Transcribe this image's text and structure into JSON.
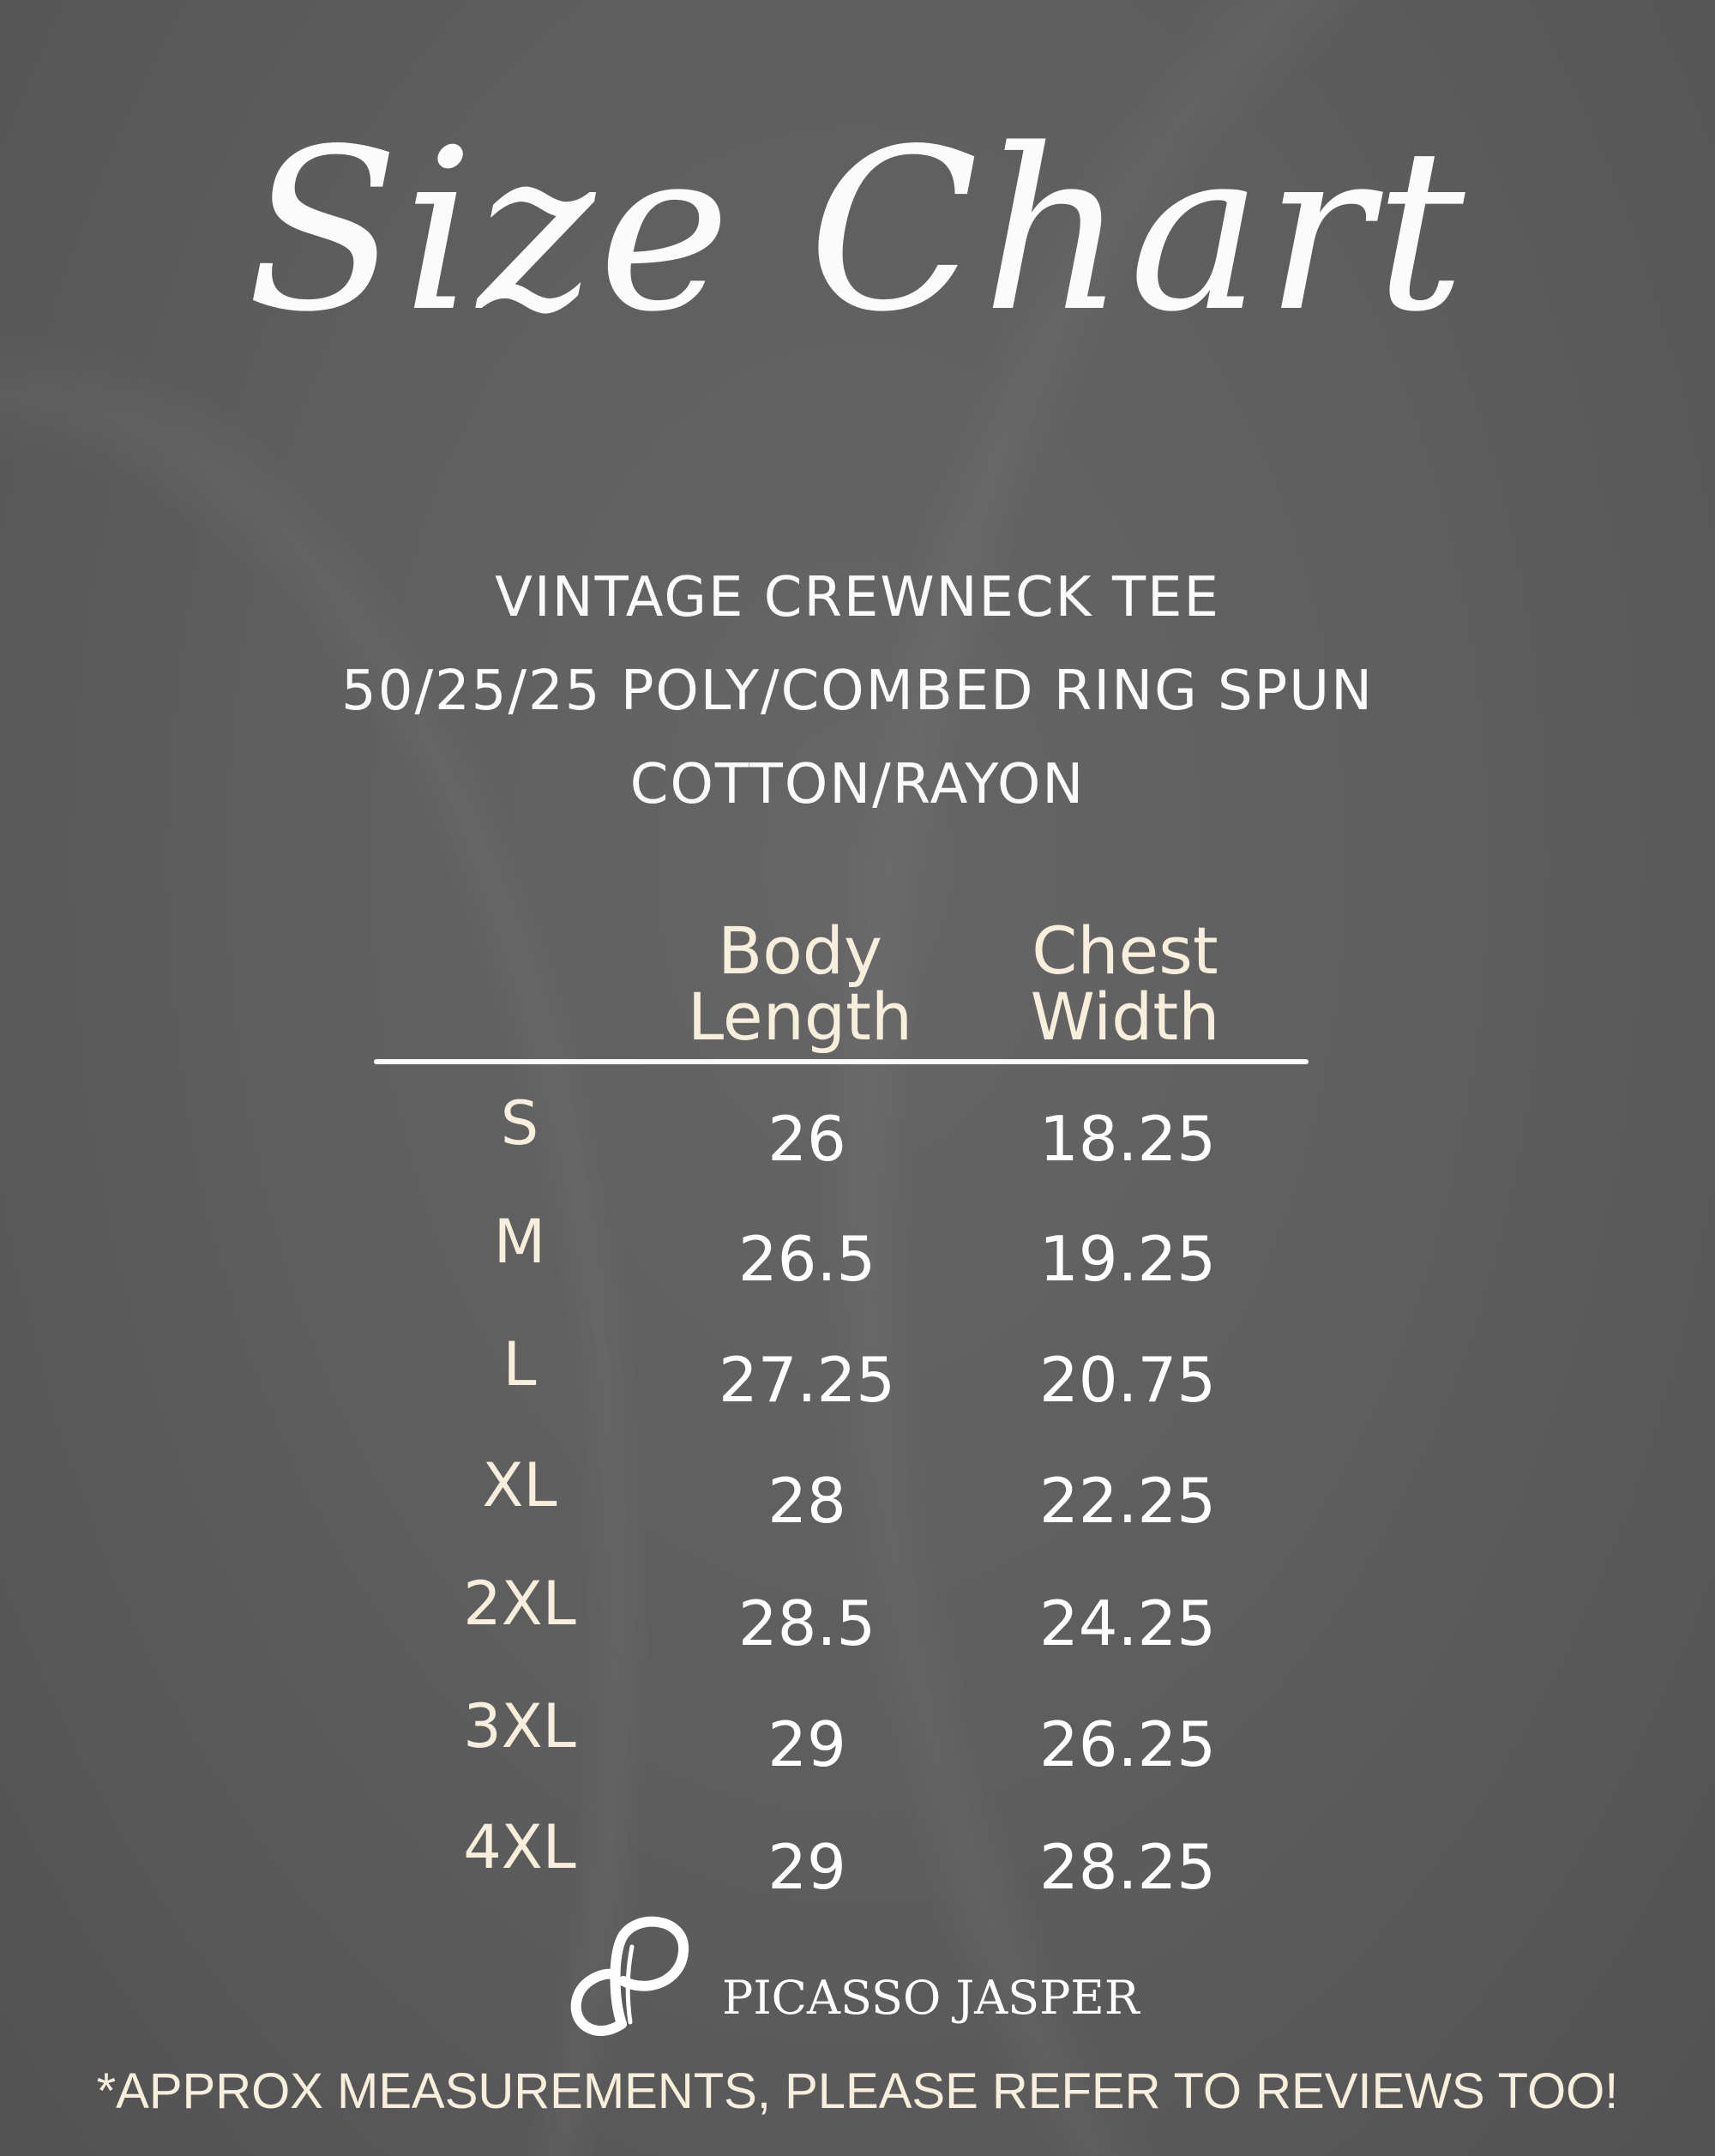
{
  "title": "Size Chart",
  "subtitle": [
    "VINTAGE CREWNECK TEE",
    "50/25/25 POLY/COMBED RING SPUN",
    "COTTON/RAYON"
  ],
  "table": {
    "headers": [
      [
        "Body",
        "Length"
      ],
      [
        "Chest",
        "Width"
      ]
    ],
    "rows": [
      {
        "size": "S",
        "body_length": "26",
        "chest_width": "18.25"
      },
      {
        "size": "M",
        "body_length": "26.5",
        "chest_width": "19.25"
      },
      {
        "size": "L",
        "body_length": "27.25",
        "chest_width": "20.75"
      },
      {
        "size": "XL",
        "body_length": "28",
        "chest_width": "22.25"
      },
      {
        "size": "2XL",
        "body_length": "28.5",
        "chest_width": "24.25"
      },
      {
        "size": "3XL",
        "body_length": "29",
        "chest_width": "26.25"
      },
      {
        "size": "4XL",
        "body_length": "29",
        "chest_width": "28.25"
      }
    ]
  },
  "brand": {
    "name": "PICASSO JASPER",
    "icon": "infinity-p-logo-icon"
  },
  "footer": "*APPROX MEASUREMENTS, PLEASE REFER TO REVIEWS TOO!",
  "colors": {
    "background": "#5d5d5d",
    "accent_text": "#f8eedc",
    "text": "#ffffff"
  }
}
